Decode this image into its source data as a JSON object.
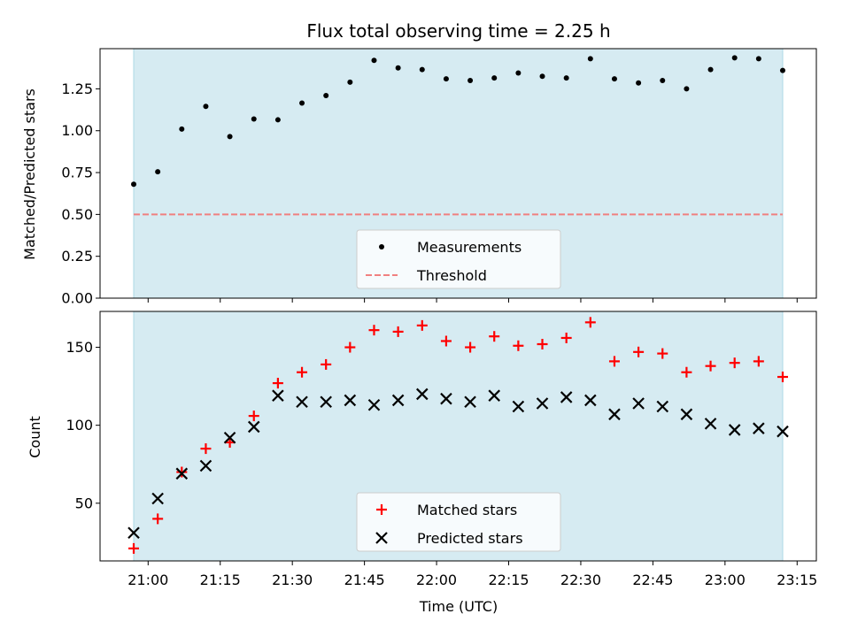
{
  "chart_data": [
    {
      "type": "scatter",
      "title": "Flux total observing time = 2.25 h",
      "xlabel": "",
      "ylabel": "Matched/Predicted stars",
      "xlim": [
        "20:50",
        "23:19"
      ],
      "ylim": [
        0,
        1.49
      ],
      "yticks": [
        0.0,
        0.25,
        0.5,
        0.75,
        1.0,
        1.25
      ],
      "ytick_labels": [
        "0.00",
        "0.25",
        "0.50",
        "0.75",
        "1.00",
        "1.25"
      ],
      "shaded_span": [
        "20:57",
        "23:12"
      ],
      "legend": "lower-center",
      "series": [
        {
          "name": "Measurements",
          "marker": "dot",
          "color": "#000000",
          "x": [
            "20:57",
            "21:02",
            "21:07",
            "21:12",
            "21:17",
            "21:22",
            "21:27",
            "21:32",
            "21:37",
            "21:42",
            "21:47",
            "21:52",
            "21:57",
            "22:02",
            "22:07",
            "22:12",
            "22:17",
            "22:22",
            "22:27",
            "22:32",
            "22:37",
            "22:42",
            "22:47",
            "22:52",
            "22:57",
            "23:02",
            "23:07",
            "23:12"
          ],
          "y": [
            0.68,
            0.755,
            1.01,
            1.145,
            0.965,
            1.07,
            1.065,
            1.165,
            1.21,
            1.29,
            1.42,
            1.375,
            1.365,
            1.31,
            1.3,
            1.315,
            1.345,
            1.325,
            1.315,
            1.43,
            1.31,
            1.285,
            1.3,
            1.25,
            1.365,
            1.435,
            1.43,
            1.36
          ]
        },
        {
          "name": "Threshold",
          "marker": "dashed-line",
          "color": "#f08080",
          "value": 0.5
        }
      ]
    },
    {
      "type": "scatter",
      "title": "",
      "xlabel": "Time (UTC)",
      "ylabel": "Count",
      "xlim": [
        "20:50",
        "23:19"
      ],
      "ylim": [
        13,
        173
      ],
      "yticks": [
        50,
        100,
        150
      ],
      "ytick_labels": [
        "50",
        "100",
        "150"
      ],
      "xtick_labels": [
        "21:00",
        "21:15",
        "21:30",
        "21:45",
        "22:00",
        "22:15",
        "22:30",
        "22:45",
        "23:00",
        "23:15"
      ],
      "shaded_span": [
        "20:57",
        "23:12"
      ],
      "legend": "lower-center",
      "series": [
        {
          "name": "Matched stars",
          "marker": "plus",
          "color": "#ff0000",
          "x": [
            "20:57",
            "21:02",
            "21:07",
            "21:12",
            "21:17",
            "21:22",
            "21:27",
            "21:32",
            "21:37",
            "21:42",
            "21:47",
            "21:52",
            "21:57",
            "22:02",
            "22:07",
            "22:12",
            "22:17",
            "22:22",
            "22:27",
            "22:32",
            "22:37",
            "22:42",
            "22:47",
            "22:52",
            "22:57",
            "23:02",
            "23:07",
            "23:12"
          ],
          "y": [
            21,
            40,
            70,
            85,
            89,
            106,
            127,
            134,
            139,
            150,
            161,
            160,
            164,
            154,
            150,
            157,
            151,
            152,
            156,
            166,
            141,
            147,
            146,
            134,
            138,
            140,
            141,
            131
          ]
        },
        {
          "name": "Predicted stars",
          "marker": "x",
          "color": "#000000",
          "x": [
            "20:57",
            "21:02",
            "21:07",
            "21:12",
            "21:17",
            "21:22",
            "21:27",
            "21:32",
            "21:37",
            "21:42",
            "21:47",
            "21:52",
            "21:57",
            "22:02",
            "22:07",
            "22:12",
            "22:17",
            "22:22",
            "22:27",
            "22:32",
            "22:37",
            "22:42",
            "22:47",
            "22:52",
            "22:57",
            "23:02",
            "23:07",
            "23:12"
          ],
          "y": [
            31,
            53,
            69,
            74,
            92,
            99,
            119,
            115,
            115,
            116,
            113,
            116,
            120,
            117,
            115,
            119,
            112,
            114,
            118,
            116,
            107,
            114,
            112,
            107,
            101,
            97,
            98,
            96
          ]
        }
      ]
    }
  ],
  "colors": {
    "shade": "#add8e6",
    "threshold": "#f08080",
    "matched": "#ff0000",
    "predicted": "#000000"
  }
}
